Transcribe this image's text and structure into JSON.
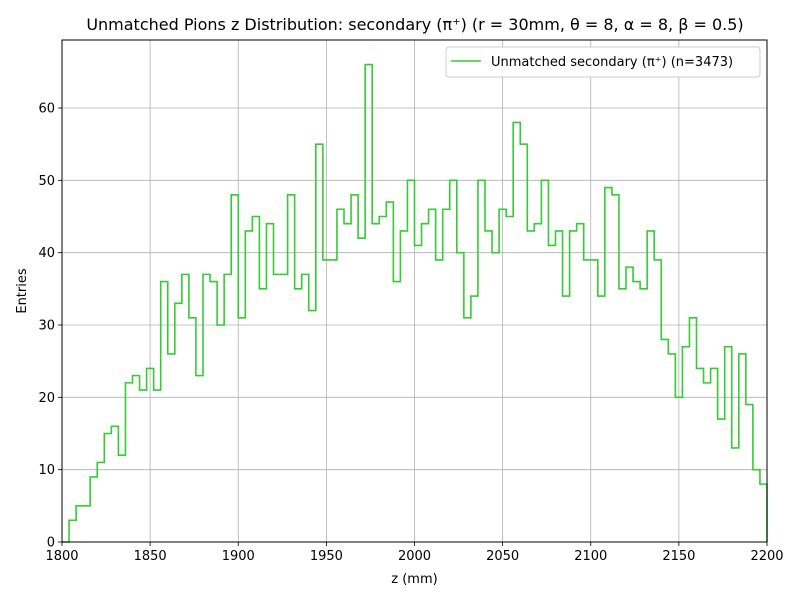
{
  "chart_data": {
    "type": "histogram-step",
    "title": "Unmatched Pions z Distribution: secondary (π⁺) (r = 30mm, θ = 8, α = 8, β = 0.5)",
    "xlabel": "z (mm)",
    "ylabel": "Entries",
    "xlim": [
      1800,
      2200
    ],
    "ylim": [
      0,
      69.4
    ],
    "xticks": [
      1800,
      1850,
      1900,
      1950,
      2000,
      2050,
      2100,
      2150,
      2200
    ],
    "yticks": [
      0,
      10,
      20,
      30,
      40,
      50,
      60
    ],
    "grid": true,
    "legend_position": "top-right",
    "series": [
      {
        "name": "Unmatched secondary (π⁺) (n=3473)",
        "color": "#33cc33",
        "bin_start": 1800,
        "bin_width": 4,
        "counts": [
          0,
          3,
          5,
          5,
          9,
          11,
          15,
          16,
          12,
          22,
          23,
          21,
          24,
          21,
          36,
          26,
          33,
          37,
          31,
          23,
          37,
          36,
          30,
          37,
          48,
          31,
          43,
          45,
          35,
          44,
          37,
          37,
          48,
          35,
          37,
          32,
          55,
          39,
          39,
          46,
          44,
          48,
          42,
          66,
          44,
          45,
          47,
          36,
          43,
          50,
          41,
          44,
          46,
          39,
          46,
          50,
          40,
          31,
          34,
          50,
          43,
          40,
          46,
          45,
          58,
          55,
          43,
          44,
          50,
          41,
          43,
          34,
          43,
          44,
          39,
          39,
          34,
          49,
          48,
          35,
          38,
          36,
          35,
          43,
          39,
          28,
          26,
          20,
          27,
          31,
          24,
          22,
          24,
          17,
          27,
          13,
          26,
          19,
          10,
          8
        ]
      }
    ]
  }
}
